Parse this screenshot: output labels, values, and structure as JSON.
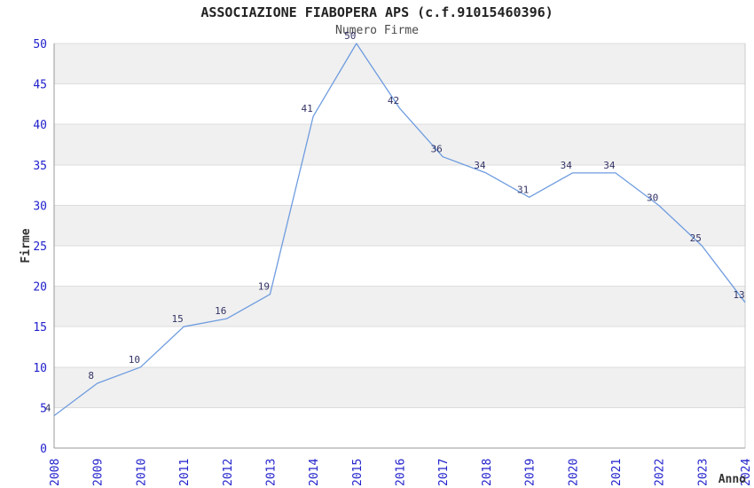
{
  "chart_data": {
    "type": "line",
    "title": "ASSOCIAZIONE FIABOPERA APS (c.f.91015460396)",
    "subtitle": "Numero Firme",
    "xlabel": "Anno",
    "ylabel": "Firme",
    "x": [
      "2008",
      "2009",
      "2010",
      "2011",
      "2012",
      "2013",
      "2014",
      "2015",
      "2016",
      "2017",
      "2018",
      "2019",
      "2020",
      "2021",
      "2022",
      "2023",
      "2024"
    ],
    "values": [
      4,
      8,
      10,
      15,
      16,
      19,
      41,
      50,
      42,
      36,
      34,
      31,
      34,
      34,
      30,
      25,
      13
    ],
    "rendered_end_value": 18,
    "ylim": [
      0,
      50
    ],
    "ytick_step": 5,
    "yticks": [
      0,
      5,
      10,
      15,
      20,
      25,
      30,
      35,
      40,
      45,
      50
    ],
    "grid": "horizontal gridlines with alternating shaded bands",
    "legend": null,
    "line_color": "#6E9CDF",
    "tick_label_color": "#2121CD",
    "data_label_color": "#333366",
    "band_color": "#F0F0F0",
    "grid_color": "#DCDCDC",
    "axis_color": "#999999",
    "right_border_color": "#CCCCCC",
    "background_color": "#FFFFFF"
  }
}
